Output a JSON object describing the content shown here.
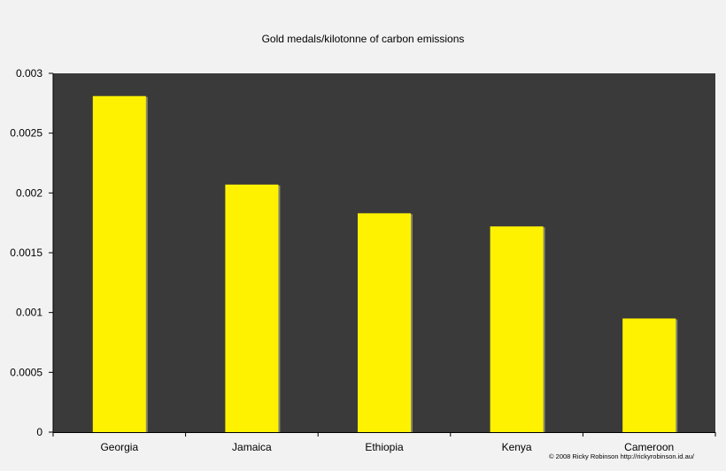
{
  "chart_data": {
    "type": "bar",
    "title": "Gold medals/kilotonne of carbon emissions",
    "xlabel": "",
    "ylabel": "",
    "categories": [
      "Georgia",
      "Jamaica",
      "Ethiopia",
      "Kenya",
      "Cameroon"
    ],
    "values": [
      0.00281,
      0.00207,
      0.00183,
      0.00172,
      0.00095
    ],
    "ylim": [
      0,
      0.003
    ],
    "yticks": [
      "0",
      "0.0005",
      "0.001",
      "0.0015",
      "0.002",
      "0.0025",
      "0.003"
    ],
    "grid": false,
    "legend": "none",
    "colors": {
      "bar": "#fff200",
      "bar_shadow": "#8a8a6a",
      "plot_background": "#3a3a3a",
      "page_background": "#f2f2f2",
      "axis": "#000000"
    }
  },
  "credit": "© 2008 Ricky Robinson http://rickyrobinson.id.au/"
}
